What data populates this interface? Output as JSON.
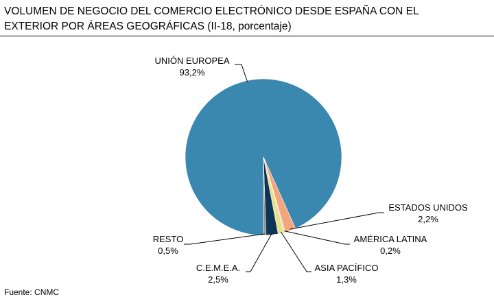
{
  "title_line1": "VOLUMEN DE NEGOCIO DEL COMERCIO ELECTRÓNICO DESDE ESPAÑA CON EL",
  "title_line2": "EXTERIOR POR ÁREAS GEOGRÁFICAS (II-18, porcentaje)",
  "source": "Fuente: CNMC",
  "chart_data": {
    "type": "pie",
    "slices": [
      {
        "label": "UNIÓN EUROPEA",
        "value_label": "93,2%",
        "value": 93.2,
        "color": "#3a88b0"
      },
      {
        "label": "ESTADOS UNIDOS",
        "value_label": "2,2%",
        "value": 2.2,
        "color": "#f4a57c"
      },
      {
        "label": "AMÉRICA LATINA",
        "value_label": "0,2%",
        "value": 0.2,
        "color": "#c8c2d6"
      },
      {
        "label": "ASIA PACÍFICO",
        "value_label": "1,3%",
        "value": 1.3,
        "color": "#e8e38a"
      },
      {
        "label": "C.E.M.E.A.",
        "value_label": "2,5%",
        "value": 2.5,
        "color": "#0f3556"
      },
      {
        "label": "RESTO",
        "value_label": "0,5%",
        "value": 0.5,
        "color": "#9a8f88"
      }
    ]
  }
}
